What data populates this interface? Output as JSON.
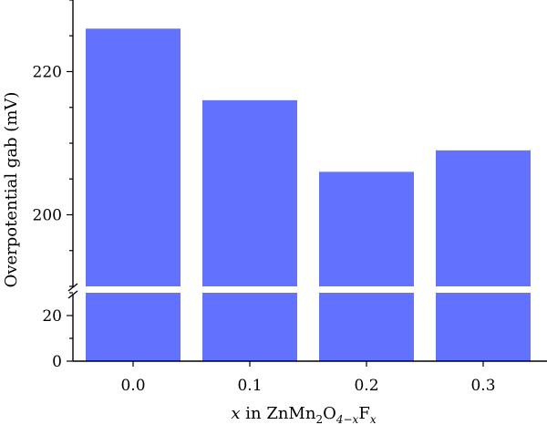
{
  "chart_data": {
    "type": "bar",
    "categories": [
      "0.0",
      "0.1",
      "0.2",
      "0.3"
    ],
    "values": [
      226,
      216,
      206,
      209
    ],
    "ylabel": "Overpotential gab (mV)",
    "xlabel": {
      "prefix": "x",
      "mid": " in ZnMn",
      "sub1": "2",
      "o": "O",
      "sub2": "4−x",
      "f": "F",
      "sub3": "x"
    },
    "broken_axis": {
      "lower_range": [
        0,
        30
      ],
      "upper_range": [
        190,
        230
      ],
      "lower_ticks": [
        "0",
        "20"
      ],
      "upper_ticks": [
        "200",
        "220"
      ]
    },
    "grid": false,
    "bar_color": "#6272ff"
  }
}
